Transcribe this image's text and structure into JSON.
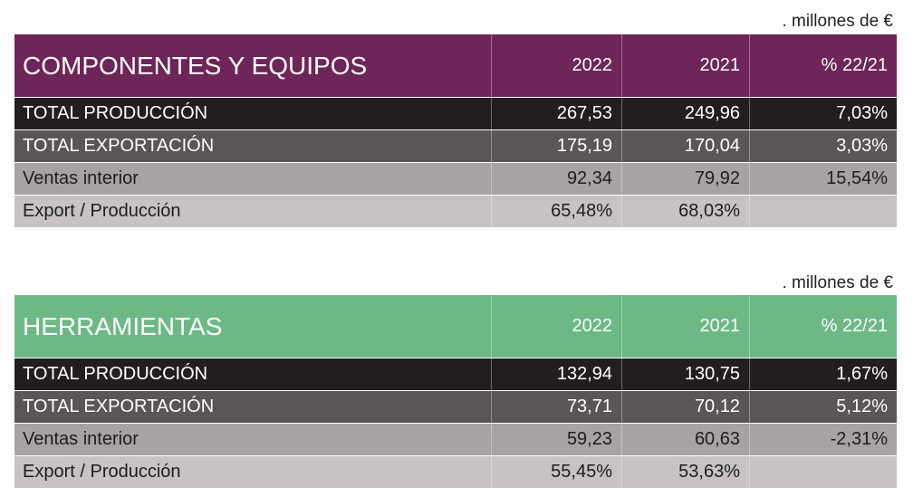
{
  "unit_note": ". millones de €",
  "tables": [
    {
      "title": "COMPONENTES Y EQUIPOS",
      "header_color": "#6e2558",
      "col_2022": "2022",
      "col_2021": "2021",
      "col_pct": "% 22/21",
      "rows": [
        {
          "label": "TOTAL PRODUCCIÓN",
          "v2022": "267,53",
          "v2021": "249,96",
          "pct": "7,03%"
        },
        {
          "label": "TOTAL EXPORTACIÓN",
          "v2022": "175,19",
          "v2021": "170,04",
          "pct": "3,03%"
        },
        {
          "label": "Ventas interior",
          "v2022": "92,34",
          "v2021": "79,92",
          "pct": "15,54%"
        },
        {
          "label": "Export / Producción",
          "v2022": "65,48%",
          "v2021": "68,03%",
          "pct": ""
        }
      ]
    },
    {
      "title": "HERRAMIENTAS",
      "header_color": "#6cb985",
      "col_2022": "2022",
      "col_2021": "2021",
      "col_pct": "% 22/21",
      "rows": [
        {
          "label": "TOTAL PRODUCCIÓN",
          "v2022": "132,94",
          "v2021": "130,75",
          "pct": "1,67%"
        },
        {
          "label": "TOTAL EXPORTACIÓN",
          "v2022": "73,71",
          "v2021": "70,12",
          "pct": "5,12%"
        },
        {
          "label": "Ventas interior",
          "v2022": "59,23",
          "v2021": "60,63",
          "pct": "-2,31%"
        },
        {
          "label": "Export / Producción",
          "v2022": "55,45%",
          "v2021": "53,63%",
          "pct": ""
        }
      ]
    }
  ]
}
